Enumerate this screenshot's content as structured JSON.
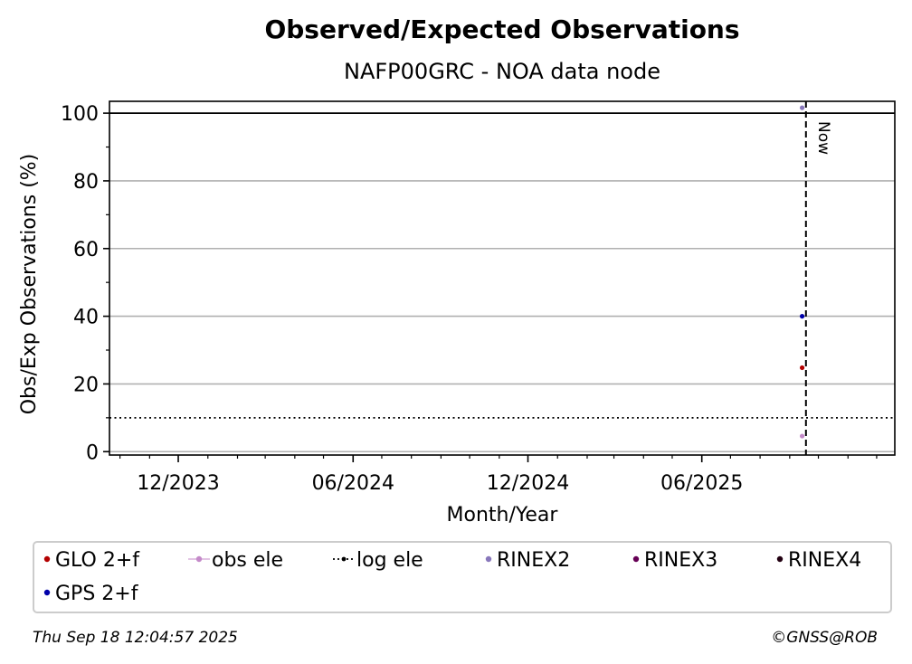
{
  "chart_data": {
    "type": "scatter",
    "title": "Observed/Expected Observations",
    "subtitle": "NAFP00GRC - NOA data node",
    "xlabel": "Month/Year",
    "ylabel": "Obs/Exp Observations (%)",
    "ylim": [
      -1,
      103.5
    ],
    "y_ticks": [
      0,
      20,
      40,
      60,
      80,
      100
    ],
    "y_tick_labels": [
      "0",
      "20",
      "40",
      "60",
      "80",
      "100"
    ],
    "x_ticks": [
      "2023-12-01",
      "2024-06-01",
      "2024-12-01",
      "2025-06-01"
    ],
    "x_tick_labels": [
      "12/2023",
      "06/2024",
      "12/2024",
      "06/2025"
    ],
    "xlim": [
      "2023-09-20",
      "2025-12-20"
    ],
    "grid": true,
    "reference_lines": {
      "upper": 100,
      "threshold": 10,
      "now_date": "2025-09-18",
      "now_label": "Now"
    },
    "series": [
      {
        "name": "GLO 2+f",
        "color": "#b30000",
        "marker": "dot",
        "points": [
          {
            "x": "2025-09-14",
            "y": 24.8
          }
        ]
      },
      {
        "name": "obs ele",
        "color": "#c48ac9",
        "marker": "dot-line",
        "points": [
          {
            "x": "2025-09-14",
            "y": 4.6
          }
        ]
      },
      {
        "name": "log ele",
        "color": "#000000",
        "marker": "dotted-line",
        "points": []
      },
      {
        "name": "RINEX2",
        "color": "#8877bb",
        "marker": "dot",
        "points": [
          {
            "x": "2025-09-14",
            "y": 101.6
          }
        ]
      },
      {
        "name": "RINEX3",
        "color": "#660055",
        "marker": "dot",
        "points": []
      },
      {
        "name": "RINEX4",
        "color": "#220011",
        "marker": "dot",
        "points": []
      },
      {
        "name": "GPS 2+f",
        "color": "#0000aa",
        "marker": "dot",
        "points": [
          {
            "x": "2025-09-14",
            "y": 40
          }
        ]
      }
    ],
    "legend_placement": "bottom"
  },
  "footer": {
    "timestamp": "Thu Sep 18 12:04:57 2025",
    "credit": "©GNSS@ROB"
  }
}
